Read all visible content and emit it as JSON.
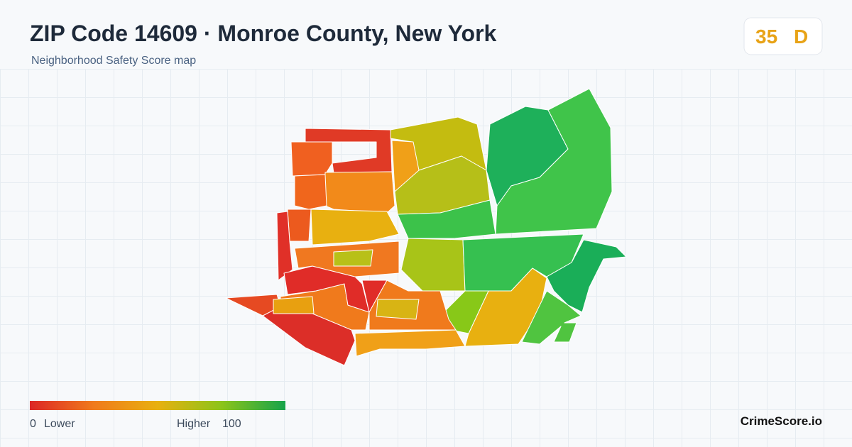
{
  "header": {
    "title": "ZIP Code 14609 · Monroe County, New York",
    "subtitle": "Neighborhood Safety Score map"
  },
  "badge": {
    "score": 35,
    "grade": "D"
  },
  "legend": {
    "min": 0,
    "min_label": "Lower",
    "max_label": "Higher",
    "max": 100
  },
  "brand": "CrimeScore.io"
}
